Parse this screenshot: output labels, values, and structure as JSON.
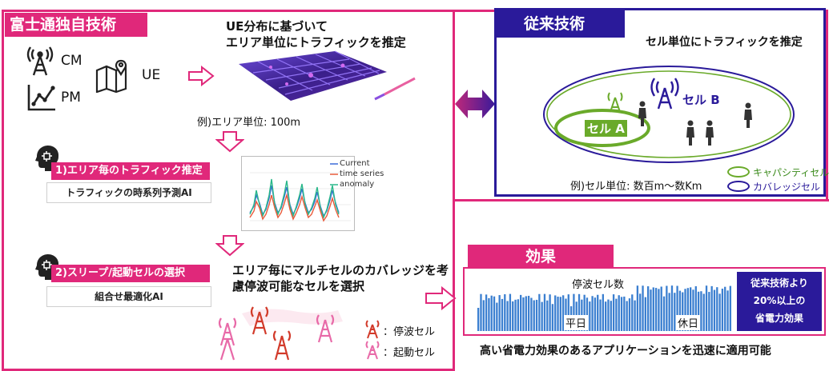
{
  "left_panel": {
    "title": "富士通独自技術",
    "inputs": {
      "cm": "CM",
      "pm": "PM",
      "ue": "UE"
    },
    "map_title_1": "UE分布に基づいて",
    "map_title_2": "エリア単位にトラフィックを推定",
    "map_caption": "例)エリア単位: 100m",
    "step1_label": "1)エリア毎のトラフィック推定",
    "step1_sub": "トラフィックの時系列予測AI",
    "ts_legend": [
      "Current",
      "time series",
      "anomaly"
    ],
    "step2_label": "2)スリープ/起動セルの選択",
    "step2_sub": "組合せ最適化AI",
    "step2_desc_1": "エリア毎にマルチセルのカバレッジを考",
    "step2_desc_2": "慮停波可能なセルを選択",
    "legend_stop": "：停波セル",
    "legend_start": "：起動セル"
  },
  "right_panel": {
    "title": "従来技術",
    "heading": "セル単位にトラフィックを推定",
    "cell_a": "セル A",
    "cell_b": "セル B",
    "caption": "例)セル単位: 数百m～数Km",
    "legend_capacity": "キャパシティセル",
    "legend_coverage": "カバレッジセル"
  },
  "effect": {
    "title": "効果",
    "chart_title": "停波セル数",
    "weekday": "平日",
    "holiday": "休日",
    "badge_1": "従来技術より",
    "badge_2": "20%以上の",
    "badge_3": "省電力効果",
    "footer": "高い省電力効果のあるアプリケーションを迅速に適用可能"
  },
  "colors": {
    "pink": "#e0287a",
    "navy": "#2a1a9a",
    "green": "#6aaa2a",
    "blue_bar": "#3b7fd0",
    "tower_red": "#d23a2a",
    "tower_pink": "#e86aa8"
  }
}
